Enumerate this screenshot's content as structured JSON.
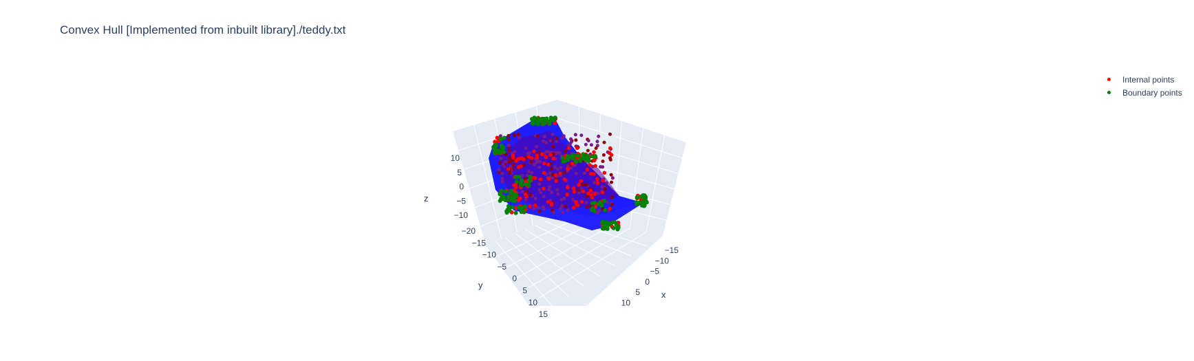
{
  "chart_data": {
    "type": "scatter3d",
    "title": "Convex Hull [Implemented from inbuilt library]./teddy.txt",
    "legend_position": "top-right",
    "series": [
      {
        "name": "Internal points",
        "color": "#ff0000"
      },
      {
        "name": "Boundary points",
        "color": "#008000"
      }
    ],
    "hull_color": "#0000ff",
    "scene_background": "#e5ecf6",
    "axes": {
      "x": {
        "label": "x",
        "ticks": [
          "−15",
          "−10",
          "−5",
          "0",
          "5",
          "10"
        ]
      },
      "y": {
        "label": "y",
        "ticks": [
          "−20",
          "−15",
          "−10",
          "−5",
          "0",
          "5",
          "10",
          "15"
        ]
      },
      "z": {
        "label": "z",
        "ticks": [
          "−10",
          "−5",
          "0",
          "5",
          "10"
        ]
      }
    }
  }
}
